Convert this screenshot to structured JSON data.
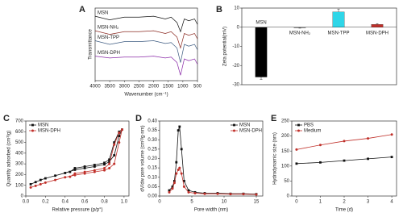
{
  "chart_data": [
    {
      "type": "line",
      "label": "A",
      "xlabel": "Wavenumber (cm⁻¹)",
      "ylabel": "Transmittance",
      "xlim": [
        4000,
        500
      ],
      "xticks": [
        4000,
        3500,
        3000,
        2500,
        2000,
        1500,
        1000,
        500
      ],
      "ylim": [
        0,
        4
      ],
      "markers": false,
      "legend": "inline",
      "series": [
        {
          "name": "MSN",
          "color": "#111111",
          "x": [
            4000,
            3500,
            3000,
            2500,
            2000,
            1600,
            1400,
            1200,
            1080,
            950,
            800,
            600,
            500
          ],
          "values": [
            3.55,
            3.35,
            3.5,
            3.5,
            3.55,
            3.4,
            3.5,
            3.2,
            2.7,
            3.4,
            3.3,
            3.4,
            3.1
          ]
        },
        {
          "name": "MSN-NH₂",
          "color": "#8b2a22",
          "x": [
            4000,
            3500,
            3000,
            2500,
            2000,
            1600,
            1400,
            1200,
            1080,
            950,
            800,
            600,
            500
          ],
          "values": [
            2.75,
            2.55,
            2.7,
            2.7,
            2.75,
            2.6,
            2.7,
            2.4,
            1.8,
            2.6,
            2.5,
            2.6,
            2.3
          ]
        },
        {
          "name": "MSN-TPP",
          "color": "#3c5a80",
          "x": [
            4000,
            3500,
            3000,
            2500,
            2000,
            1600,
            1400,
            1200,
            1080,
            950,
            800,
            600,
            500
          ],
          "values": [
            2.2,
            2.0,
            2.15,
            2.15,
            2.2,
            2.05,
            2.1,
            1.8,
            1.0,
            2.0,
            1.9,
            2.0,
            1.7
          ]
        },
        {
          "name": "MSN-DPH",
          "color": "#8a2aa8",
          "x": [
            4000,
            3500,
            3000,
            2500,
            2000,
            1600,
            1400,
            1200,
            1080,
            950,
            800,
            600,
            500
          ],
          "values": [
            1.35,
            1.25,
            1.3,
            1.3,
            1.35,
            1.25,
            1.3,
            1.0,
            0.3,
            1.2,
            1.1,
            1.2,
            0.9
          ]
        }
      ]
    },
    {
      "type": "bar",
      "label": "B",
      "ylabel": "Zeta potential(mV)",
      "categories": [
        "MSN",
        "MSN-NH₂",
        "MSN-TPP",
        "MSN-DPH"
      ],
      "values": [
        -26,
        -0.3,
        8,
        1.5
      ],
      "errors": [
        1.2,
        0.2,
        1.5,
        0.4
      ],
      "colors": [
        "#000000",
        "#444444",
        "#2fd6e8",
        "#c0302a"
      ],
      "ylim": [
        -30,
        10
      ],
      "yticks": [
        -30,
        -20,
        -10,
        0,
        10
      ]
    },
    {
      "type": "line",
      "label": "C",
      "xlabel": "Relative pressure (p/p°)",
      "ylabel": "Quantity adsorbed (cm³/g)",
      "xlim": [
        0,
        1.05
      ],
      "xticks": [
        {
          "value": 0,
          "label": "0.0"
        },
        0.2,
        0.4,
        0.6,
        0.8,
        {
          "value": 1,
          "label": "1.0"
        }
      ],
      "ylim": [
        0,
        700
      ],
      "yticks": [
        0,
        100,
        200,
        300,
        400,
        500,
        600,
        700
      ],
      "markers": true,
      "legend": "upper left",
      "series": [
        {
          "name": "MSN",
          "color": "#111111",
          "x": [
            0.05,
            0.1,
            0.15,
            0.2,
            0.3,
            0.4,
            0.5,
            0.6,
            0.7,
            0.8,
            0.85,
            0.9,
            0.95,
            0.98,
            0.95,
            0.9,
            0.85,
            0.8,
            0.7,
            0.6,
            0.5,
            0.45
          ],
          "values": [
            110,
            130,
            150,
            165,
            190,
            215,
            245,
            260,
            275,
            295,
            320,
            380,
            560,
            620,
            600,
            500,
            340,
            310,
            290,
            275,
            260,
            225
          ]
        },
        {
          "name": "MSN-DPH",
          "color": "#c0302a",
          "x": [
            0.05,
            0.1,
            0.15,
            0.2,
            0.3,
            0.4,
            0.5,
            0.6,
            0.7,
            0.8,
            0.85,
            0.9,
            0.95,
            0.98,
            0.95,
            0.9,
            0.85,
            0.8,
            0.7,
            0.6,
            0.5,
            0.45
          ],
          "values": [
            80,
            95,
            110,
            125,
            150,
            175,
            195,
            210,
            225,
            240,
            260,
            300,
            500,
            620,
            590,
            480,
            300,
            260,
            240,
            225,
            210,
            180
          ]
        }
      ]
    },
    {
      "type": "line",
      "label": "D",
      "xlabel": "Pore width (nm)",
      "ylabel": "dV/dw pore volume (cm³/g·nm)",
      "xlim": [
        0,
        16
      ],
      "xticks": [
        0,
        5,
        10,
        15
      ],
      "ylim": [
        0,
        0.4
      ],
      "yticks": [
        {
          "value": 0,
          "label": "0.00"
        },
        {
          "value": 0.05,
          "label": "0.05"
        },
        {
          "value": 0.1,
          "label": "0.10"
        },
        {
          "value": 0.15,
          "label": "0.15"
        },
        {
          "value": 0.2,
          "label": "0.20"
        },
        {
          "value": 0.25,
          "label": "0.25"
        },
        {
          "value": 0.3,
          "label": "0.30"
        },
        {
          "value": 0.35,
          "label": "0.35"
        },
        {
          "value": 0.4,
          "label": "0.40"
        }
      ],
      "markers": true,
      "legend": "upper right",
      "series": [
        {
          "name": "MSN",
          "color": "#111111",
          "x": [
            1.5,
            2,
            2.3,
            2.6,
            2.9,
            3.1,
            3.4,
            3.8,
            4.5,
            5.5,
            7,
            9,
            11,
            13,
            15
          ],
          "values": [
            0.03,
            0.05,
            0.08,
            0.18,
            0.35,
            0.37,
            0.25,
            0.08,
            0.03,
            0.02,
            0.015,
            0.015,
            0.012,
            0.012,
            0.01
          ]
        },
        {
          "name": "MSN-DPH",
          "color": "#c0302a",
          "x": [
            1.5,
            2,
            2.3,
            2.6,
            2.9,
            3.1,
            3.4,
            3.8,
            4.5,
            5.5,
            7,
            9,
            11,
            13,
            15
          ],
          "values": [
            0.02,
            0.04,
            0.07,
            0.12,
            0.14,
            0.15,
            0.12,
            0.05,
            0.02,
            0.015,
            0.012,
            0.012,
            0.01,
            0.01,
            0.008
          ]
        }
      ]
    },
    {
      "type": "line",
      "label": "E",
      "xlabel": "Time (d)",
      "ylabel": "Hydrodynamic size (nm)",
      "xlim": [
        -0.2,
        4.2
      ],
      "xticks": [
        0,
        1,
        2,
        3,
        4
      ],
      "ylim": [
        0,
        250
      ],
      "yticks": [
        0,
        50,
        100,
        150,
        200,
        250
      ],
      "markers": true,
      "legend": "upper left",
      "series": [
        {
          "name": "PBS",
          "color": "#111111",
          "x": [
            0,
            1,
            2,
            3,
            4
          ],
          "values": [
            108,
            112,
            118,
            124,
            130
          ]
        },
        {
          "name": "Medium",
          "color": "#c0302a",
          "x": [
            0,
            1,
            2,
            3,
            4
          ],
          "values": [
            155,
            170,
            183,
            192,
            205
          ]
        }
      ]
    }
  ]
}
